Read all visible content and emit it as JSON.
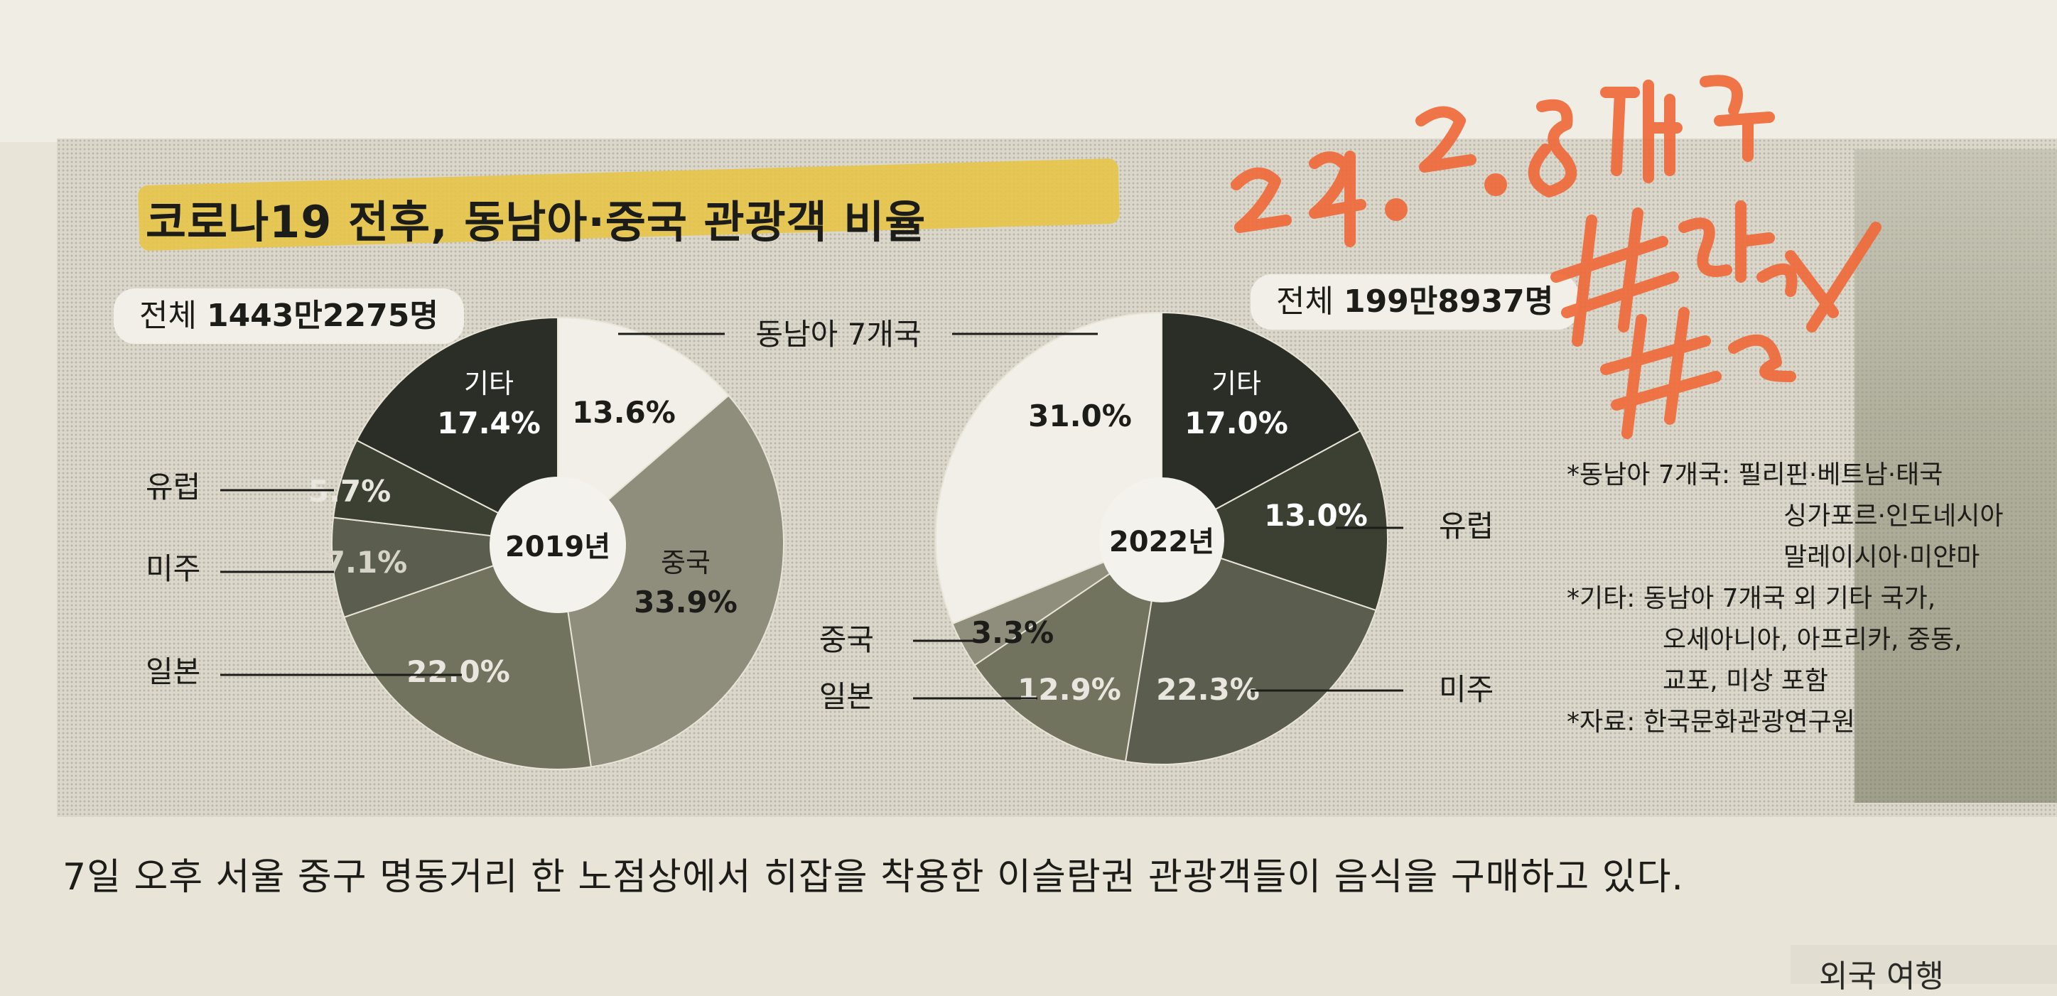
{
  "title": "코로나19 전후, 동남아·중국 관광객 비율",
  "colors": {
    "기타": "#2b2e26",
    "유럽": "#3c4033",
    "미주": "#5b5e4f",
    "일본": "#71735f",
    "중국": "#8f8d7c",
    "동남아 7개국": "#f1efe7",
    "highlight": "#e7c544",
    "handwriting": "#ef6a3a"
  },
  "center_callout": "동남아 7개국",
  "chart_data": [
    {
      "type": "pie",
      "title": "2019년",
      "total_prefix": "전체 ",
      "total_value": "1443만2275명",
      "center_label": "2019년",
      "slices": [
        {
          "name": "동남아 7개국",
          "value": 13.6,
          "label": "13.6%"
        },
        {
          "name": "중국",
          "value": 33.9,
          "label": "33.9%"
        },
        {
          "name": "일본",
          "value": 22.0,
          "label": "22.0%"
        },
        {
          "name": "미주",
          "value": 7.1,
          "label": "7.1%"
        },
        {
          "name": "유럽",
          "value": 5.7,
          "label": "5.7%"
        },
        {
          "name": "기타",
          "value": 17.4,
          "label": "17.4%"
        }
      ]
    },
    {
      "type": "pie",
      "title": "2022년",
      "total_prefix": "전체 ",
      "total_value": "199만8937명",
      "center_label": "2022년",
      "slices": [
        {
          "name": "기타",
          "value": 17.0,
          "label": "17.0%"
        },
        {
          "name": "유럽",
          "value": 13.0,
          "label": "13.0%"
        },
        {
          "name": "미주",
          "value": 22.3,
          "label": "22.3%"
        },
        {
          "name": "일본",
          "value": 12.9,
          "label": "12.9%"
        },
        {
          "name": "중국",
          "value": 3.3,
          "label": "3.3%"
        },
        {
          "name": "동남아 7개국",
          "value": 31.0,
          "label": "31.0%"
        }
      ]
    }
  ],
  "notes": {
    "sea_label": "*동남아 7개국:",
    "sea_line1": "필리핀·베트남·태국",
    "sea_line2": "싱가포르·인도네시아",
    "sea_line3": "말레이시아·미얀마",
    "other_label": "*기타:",
    "other_line1": "동남아 7개국 외 기타 국가,",
    "other_line2": "오세아니아, 아프리카, 중동,",
    "other_line3": "교포, 미상 포함",
    "source_label": "*자료:",
    "source_value": "한국문화관광연구원"
  },
  "caption": "7일 오후 서울 중구 명동거리 한 노점상에서 히잡을 착용한 이슬람권 관광객들이 음식을 구매하고 있다.",
  "next_article_fragment": "외국 여행"
}
